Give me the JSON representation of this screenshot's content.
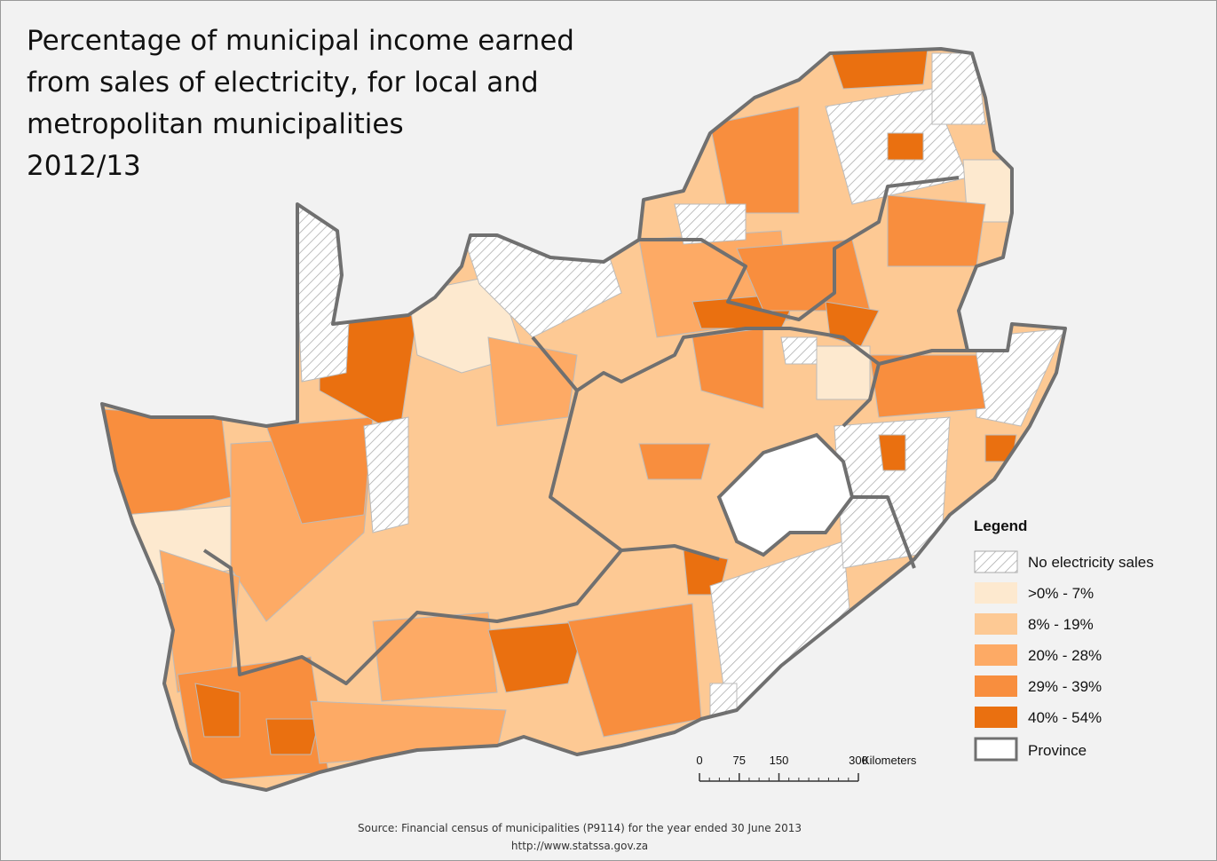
{
  "title": {
    "lines": [
      "Percentage of municipal income earned",
      "from sales of electricity, for local and",
      "metropolitan municipalities",
      "2012/13"
    ]
  },
  "legend": {
    "title": "Legend",
    "items": [
      "No electricity sales",
      ">0% - 7%",
      "8% - 19%",
      "20% - 28%",
      "29% - 39%",
      "40% - 54%",
      "Province"
    ]
  },
  "scale_bar": {
    "ticks": [
      0,
      75,
      150,
      300
    ],
    "unit": "Kilometers"
  },
  "source": {
    "lines": [
      "Source: Financial census of municipalities (P9114) for the year ended 30 June 2013",
      "http://www.statssa.gov.za"
    ]
  }
}
